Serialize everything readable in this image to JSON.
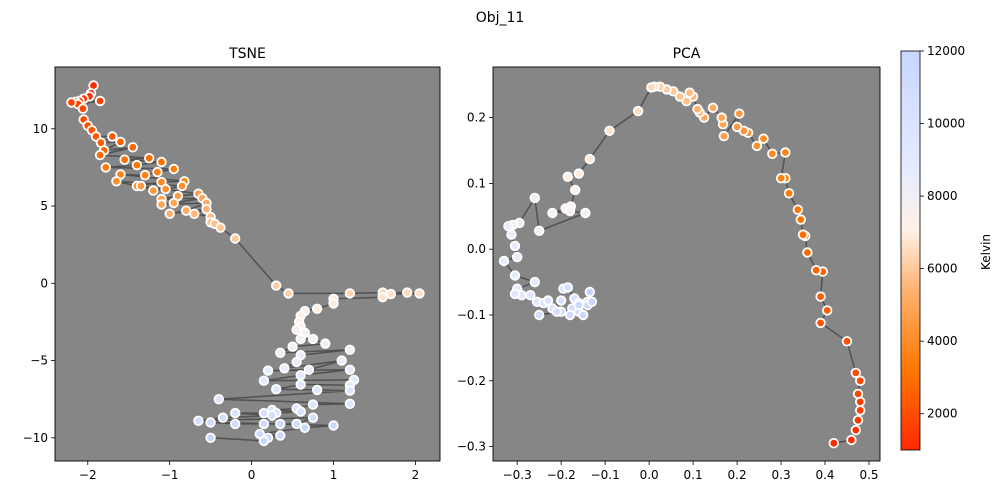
{
  "figure": {
    "title": "Obj_11"
  },
  "chart_data": [
    {
      "type": "line",
      "title": "TSNE",
      "xlim": [
        -2.4,
        2.3
      ],
      "ylim": [
        -11.5,
        14
      ],
      "xticks": [
        -2,
        -1,
        0,
        1,
        2
      ],
      "yticks": [
        10,
        5,
        0,
        -5,
        -10
      ],
      "grid": false,
      "points": [
        [
          -1.93,
          12.8
        ],
        [
          -1.96,
          12.3
        ],
        [
          -1.98,
          12.1
        ],
        [
          -2.05,
          11.95
        ],
        [
          -2.1,
          11.8
        ],
        [
          -2.15,
          11.75
        ],
        [
          -2.12,
          11.6
        ],
        [
          -1.85,
          11.8
        ],
        [
          -2.2,
          11.7
        ],
        [
          -2.06,
          11.3
        ],
        [
          -2.05,
          10.6
        ],
        [
          -2.0,
          10.2
        ],
        [
          -1.95,
          9.9
        ],
        [
          -1.9,
          9.5
        ],
        [
          -1.7,
          9.5
        ],
        [
          -1.84,
          9.1
        ],
        [
          -1.6,
          9.15
        ],
        [
          -1.8,
          8.6
        ],
        [
          -1.45,
          8.8
        ],
        [
          -1.85,
          8.3
        ],
        [
          -1.25,
          8.1
        ],
        [
          -1.55,
          8.0
        ],
        [
          -1.1,
          7.85
        ],
        [
          -1.4,
          7.65
        ],
        [
          -1.78,
          7.5
        ],
        [
          -0.95,
          7.4
        ],
        [
          -1.15,
          7.2
        ],
        [
          -1.3,
          7.0
        ],
        [
          -1.6,
          7.05
        ],
        [
          -0.82,
          6.6
        ],
        [
          -1.1,
          6.55
        ],
        [
          -1.4,
          6.3
        ],
        [
          -1.65,
          6.6
        ],
        [
          -0.85,
          6.3
        ],
        [
          -1.05,
          6.1
        ],
        [
          -1.2,
          6.0
        ],
        [
          -1.35,
          6.3
        ],
        [
          -0.65,
          5.8
        ],
        [
          -0.9,
          5.65
        ],
        [
          -1.1,
          5.45
        ],
        [
          -0.6,
          5.5
        ],
        [
          -0.95,
          5.2
        ],
        [
          -1.1,
          5.1
        ],
        [
          -0.55,
          5.2
        ],
        [
          -0.8,
          4.7
        ],
        [
          -1.0,
          4.5
        ],
        [
          -0.55,
          4.8
        ],
        [
          -0.7,
          4.5
        ],
        [
          -0.5,
          4.3
        ],
        [
          -0.5,
          3.95
        ],
        [
          -0.45,
          3.85
        ],
        [
          -0.38,
          3.6
        ],
        [
          -0.2,
          2.9
        ],
        [
          0.3,
          -0.15
        ],
        [
          0.45,
          -0.65
        ],
        [
          1.2,
          -0.65
        ],
        [
          1.6,
          -0.6
        ],
        [
          1.9,
          -0.6
        ],
        [
          2.05,
          -0.65
        ],
        [
          1.7,
          -0.7
        ],
        [
          1.6,
          -0.9
        ],
        [
          1.0,
          -1.0
        ],
        [
          1.0,
          -1.3
        ],
        [
          0.8,
          -1.65
        ],
        [
          0.65,
          -1.8
        ],
        [
          0.6,
          -2.1
        ],
        [
          0.58,
          -2.5
        ],
        [
          0.6,
          -2.8
        ],
        [
          0.55,
          -3.0
        ],
        [
          0.65,
          -3.2
        ],
        [
          0.6,
          -3.6
        ],
        [
          0.75,
          -3.6
        ],
        [
          0.9,
          -3.9
        ],
        [
          0.5,
          -4.1
        ],
        [
          0.35,
          -4.5
        ],
        [
          1.2,
          -4.3
        ],
        [
          0.6,
          -4.65
        ],
        [
          0.55,
          -5.1
        ],
        [
          0.4,
          -5.5
        ],
        [
          1.1,
          -5.0
        ],
        [
          0.7,
          -5.6
        ],
        [
          0.2,
          -5.65
        ],
        [
          1.2,
          -5.6
        ],
        [
          0.6,
          -5.95
        ],
        [
          0.15,
          -6.3
        ],
        [
          1.25,
          -6.25
        ],
        [
          1.2,
          -6.6
        ],
        [
          0.6,
          -6.55
        ],
        [
          0.3,
          -6.85
        ],
        [
          0.8,
          -6.9
        ],
        [
          1.2,
          -6.95
        ],
        [
          -0.4,
          -7.5
        ],
        [
          1.2,
          -7.8
        ],
        [
          0.75,
          -7.85
        ],
        [
          0.55,
          -8.1
        ],
        [
          0.25,
          -8.2
        ],
        [
          0.6,
          -8.3
        ],
        [
          0.3,
          -8.4
        ],
        [
          0.15,
          -8.4
        ],
        [
          -0.2,
          -8.4
        ],
        [
          0.25,
          -8.55
        ],
        [
          -0.35,
          -8.7
        ],
        [
          -0.65,
          -8.9
        ],
        [
          0.75,
          -8.7
        ],
        [
          0.55,
          -9.1
        ],
        [
          0.15,
          -9.1
        ],
        [
          0.35,
          -9.1
        ],
        [
          -0.2,
          -9.1
        ],
        [
          -0.5,
          -9.0
        ],
        [
          1.0,
          -9.2
        ],
        [
          0.65,
          -9.35
        ],
        [
          0.1,
          -9.75
        ],
        [
          0.35,
          -9.85
        ],
        [
          0.2,
          -10.0
        ],
        [
          0.15,
          -10.2
        ],
        [
          -0.5,
          -10.0
        ]
      ],
      "kelvin": [
        1000,
        12000
      ]
    },
    {
      "type": "line",
      "title": "PCA",
      "xlim": [
        -0.355,
        0.525
      ],
      "ylim": [
        -0.322,
        0.277
      ],
      "xticks": [
        -0.3,
        -0.2,
        -0.1,
        0.0,
        0.1,
        0.2,
        0.3,
        0.4,
        0.5
      ],
      "yticks": [
        0.2,
        0.1,
        0.0,
        -0.1,
        -0.2,
        -0.3
      ],
      "grid": false,
      "points": [
        [
          0.42,
          -0.295
        ],
        [
          0.46,
          -0.29
        ],
        [
          0.47,
          -0.275
        ],
        [
          0.475,
          -0.26
        ],
        [
          0.48,
          -0.245
        ],
        [
          0.48,
          -0.232
        ],
        [
          0.475,
          -0.22
        ],
        [
          0.48,
          -0.2
        ],
        [
          0.47,
          -0.188
        ],
        [
          0.45,
          -0.14
        ],
        [
          0.39,
          -0.112
        ],
        [
          0.405,
          -0.093
        ],
        [
          0.39,
          -0.072
        ],
        [
          0.395,
          -0.034
        ],
        [
          0.38,
          -0.032
        ],
        [
          0.36,
          -0.005
        ],
        [
          0.355,
          0.02
        ],
        [
          0.35,
          0.022
        ],
        [
          0.345,
          0.045
        ],
        [
          0.338,
          0.06
        ],
        [
          0.318,
          0.085
        ],
        [
          0.31,
          0.108
        ],
        [
          0.3,
          0.108
        ],
        [
          0.31,
          0.147
        ],
        [
          0.28,
          0.145
        ],
        [
          0.26,
          0.168
        ],
        [
          0.245,
          0.157
        ],
        [
          0.225,
          0.177
        ],
        [
          0.215,
          0.18
        ],
        [
          0.2,
          0.186
        ],
        [
          0.205,
          0.206
        ],
        [
          0.17,
          0.172
        ],
        [
          0.168,
          0.19
        ],
        [
          0.165,
          0.2
        ],
        [
          0.145,
          0.215
        ],
        [
          0.125,
          0.2
        ],
        [
          0.115,
          0.208
        ],
        [
          0.11,
          0.213
        ],
        [
          0.1,
          0.232
        ],
        [
          0.092,
          0.238
        ],
        [
          0.085,
          0.225
        ],
        [
          0.07,
          0.232
        ],
        [
          0.055,
          0.24
        ],
        [
          0.04,
          0.243
        ],
        [
          0.025,
          0.247
        ],
        [
          0.012,
          0.247
        ],
        [
          0.005,
          0.246
        ],
        [
          -0.025,
          0.21
        ],
        [
          -0.09,
          0.18
        ],
        [
          -0.135,
          0.137
        ],
        [
          -0.16,
          0.115
        ],
        [
          -0.185,
          0.11
        ],
        [
          -0.168,
          0.09
        ],
        [
          -0.178,
          0.065
        ],
        [
          -0.19,
          0.062
        ],
        [
          -0.22,
          0.055
        ],
        [
          -0.18,
          0.058
        ],
        [
          -0.145,
          0.055
        ],
        [
          -0.25,
          0.028
        ],
        [
          -0.26,
          0.078
        ],
        [
          -0.295,
          0.04
        ],
        [
          -0.31,
          0.037
        ],
        [
          -0.32,
          0.035
        ],
        [
          -0.313,
          0.022
        ],
        [
          -0.305,
          0.005
        ],
        [
          -0.3,
          -0.012
        ],
        [
          -0.33,
          -0.018
        ],
        [
          -0.305,
          -0.04
        ],
        [
          -0.26,
          -0.05
        ],
        [
          -0.3,
          -0.06
        ],
        [
          -0.29,
          -0.07
        ],
        [
          -0.305,
          -0.068
        ],
        [
          -0.27,
          -0.07
        ],
        [
          -0.255,
          -0.08
        ],
        [
          -0.24,
          -0.082
        ],
        [
          -0.23,
          -0.078
        ],
        [
          -0.22,
          -0.09
        ],
        [
          -0.2,
          -0.078
        ],
        [
          -0.195,
          -0.06
        ],
        [
          -0.185,
          -0.058
        ],
        [
          -0.17,
          -0.075
        ],
        [
          -0.16,
          -0.082
        ],
        [
          -0.175,
          -0.09
        ],
        [
          -0.2,
          -0.095
        ],
        [
          -0.25,
          -0.1
        ],
        [
          -0.21,
          -0.095
        ],
        [
          -0.16,
          -0.095
        ],
        [
          -0.18,
          -0.1
        ],
        [
          -0.16,
          -0.085
        ],
        [
          -0.14,
          -0.08
        ],
        [
          -0.15,
          -0.1
        ],
        [
          -0.14,
          -0.085
        ],
        [
          -0.13,
          -0.08
        ],
        [
          -0.135,
          -0.065
        ]
      ],
      "kelvin": [
        1000,
        12000
      ]
    }
  ],
  "colorbar": {
    "label": "Kelvin",
    "min": 1000,
    "max": 12000,
    "ticks": [
      2000,
      4000,
      6000,
      8000,
      10000,
      12000
    ],
    "colors": [
      "#ff2a00",
      "#ff7700",
      "#ffb270",
      "#fff1e6",
      "#e6ecff",
      "#c8d6ff"
    ]
  }
}
